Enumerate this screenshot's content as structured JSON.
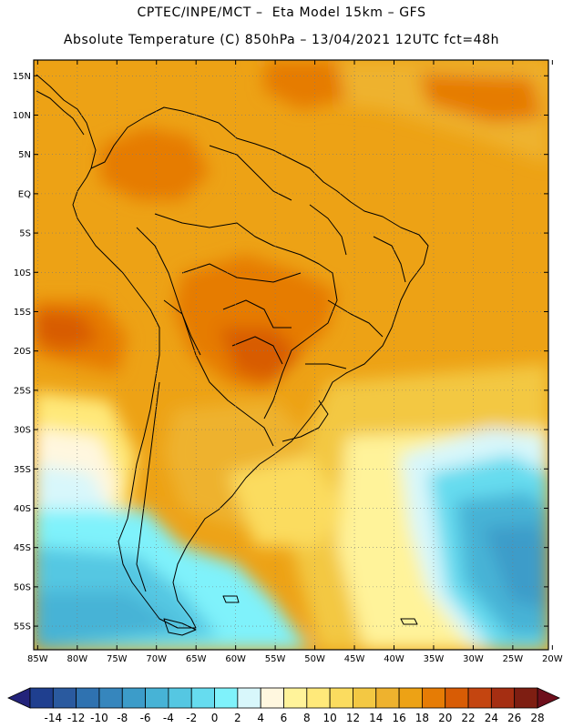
{
  "title": {
    "line1": "CPTEC/INPE/MCT –  Eta Model 15km – GFS",
    "line2": "Absolute Temperature (C) 850hPa – 13/04/2021 12UTC fct=48h"
  },
  "map": {
    "lat_labels": [
      "15N",
      "10N",
      "5N",
      "EQ",
      "5S",
      "10S",
      "15S",
      "20S",
      "25S",
      "30S",
      "35S",
      "40S",
      "45S",
      "50S",
      "55S"
    ],
    "lon_labels": [
      "85W",
      "80W",
      "75W",
      "70W",
      "65W",
      "60W",
      "55W",
      "50W",
      "45W",
      "40W",
      "35W",
      "30W",
      "25W",
      "20W"
    ],
    "lat_range": [
      17,
      -58
    ],
    "lon_range": [
      -85.5,
      -20.5
    ],
    "grid": "dotted"
  },
  "colorbar": {
    "values": [
      "-14",
      "-12",
      "-10",
      "-8",
      "-6",
      "-4",
      "-2",
      "0",
      "2",
      "4",
      "6",
      "8",
      "10",
      "12",
      "14",
      "16",
      "18",
      "20",
      "22",
      "24",
      "26",
      "28"
    ],
    "colors": [
      "#1f3f8f",
      "#2a5a9f",
      "#2f72b0",
      "#3686bd",
      "#3c9cc9",
      "#47b3d6",
      "#55c7e2",
      "#66dcef",
      "#7ff2fb",
      "#d8f7fb",
      "#fff7df",
      "#fff39a",
      "#ffe97a",
      "#fbdc5f",
      "#f3c843",
      "#eeb22e",
      "#eda215",
      "#e67c05",
      "#d85c05",
      "#c44510",
      "#a52e12",
      "#7e1e12"
    ],
    "low_end_color": "#23237a",
    "high_end_color": "#6e0f1c"
  }
}
